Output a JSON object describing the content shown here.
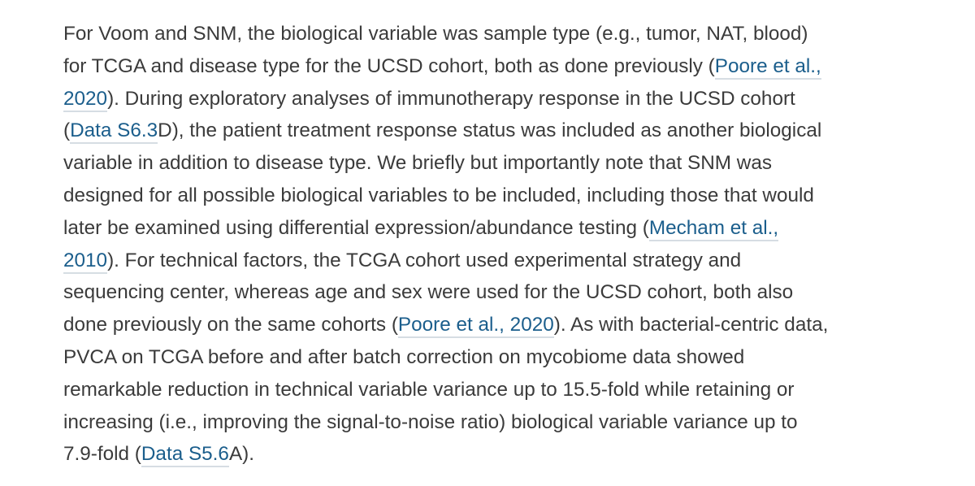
{
  "lines": [
    [
      "For Voom and SNM, the biological variable was sample type (e.g., tumor, NAT, blood)"
    ],
    [
      "for TCGA and disease type for the UCSD cohort, both as done previously (",
      {
        "text": "Poore et al.,",
        "link": true
      }
    ],
    [
      {
        "text": "2020",
        "link": true
      },
      "). During exploratory analyses of immunotherapy response in the UCSD cohort"
    ],
    [
      "(",
      {
        "text": "Data S6.3",
        "link": true
      },
      "D), the patient treatment response status was included as another biological"
    ],
    [
      "variable in addition to disease type. We briefly but importantly note that SNM was"
    ],
    [
      "designed for all possible biological variables to be included, including those that would"
    ],
    [
      "later be examined using differential expression/abundance testing (",
      {
        "text": "Mecham et al.,",
        "link": true
      }
    ],
    [
      {
        "text": "2010",
        "link": true
      },
      "). For technical factors, the TCGA cohort used experimental strategy and"
    ],
    [
      "sequencing center, whereas age and sex were used for the UCSD cohort, both also"
    ],
    [
      "done previously on the same cohorts (",
      {
        "text": "Poore et al., 2020",
        "link": true
      },
      "). As with bacterial-centric data,"
    ],
    [
      "PVCA on TCGA before and after batch correction on mycobiome data showed"
    ],
    [
      "remarkable reduction in technical variable variance up to 15.5-fold while retaining or"
    ],
    [
      "increasing (i.e., improving the signal-to-noise ratio) biological variable variance up to"
    ],
    [
      "7.9-fold (",
      {
        "text": "Data S5.6",
        "link": true
      },
      "A)."
    ]
  ]
}
